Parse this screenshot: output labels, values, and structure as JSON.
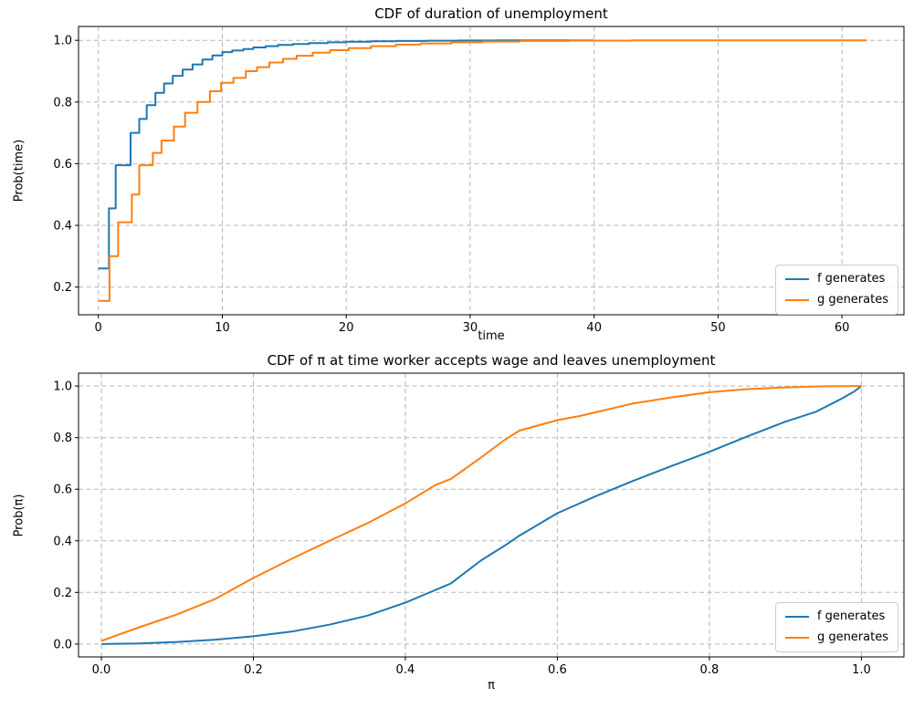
{
  "figure": {
    "background": "#ffffff",
    "grid_color": "#b5b5b5",
    "spine_color": "#000000",
    "legend_border_color": "#cccccc"
  },
  "chart_data": [
    {
      "type": "line",
      "subtype": "step-cdf",
      "title": "CDF of duration of unemployment",
      "xlabel": "time",
      "ylabel": "Prob(time)",
      "xlim": [
        -1.6,
        65.0
      ],
      "ylim": [
        0.11,
        1.045
      ],
      "grid": "dashed",
      "legend_position": "lower right",
      "xticks": [
        {
          "v": 0,
          "label": "0"
        },
        {
          "v": 10,
          "label": "10"
        },
        {
          "v": 20,
          "label": "20"
        },
        {
          "v": 30,
          "label": "30"
        },
        {
          "v": 40,
          "label": "40"
        },
        {
          "v": 50,
          "label": "50"
        },
        {
          "v": 60,
          "label": "60"
        }
      ],
      "yticks": [
        {
          "v": 0.2,
          "label": "0.2"
        },
        {
          "v": 0.4,
          "label": "0.4"
        },
        {
          "v": 0.6,
          "label": "0.6"
        },
        {
          "v": 0.8,
          "label": "0.8"
        },
        {
          "v": 1.0,
          "label": "1.0"
        }
      ],
      "series": [
        {
          "name": "f generates",
          "color": "#1f77b4",
          "style": "step",
          "points": [
            [
              0,
              0.26
            ],
            [
              0.85,
              0.455
            ],
            [
              1.4,
              0.595
            ],
            [
              2.6,
              0.7
            ],
            [
              3.3,
              0.745
            ],
            [
              3.9,
              0.79
            ],
            [
              4.6,
              0.83
            ],
            [
              5.3,
              0.86
            ],
            [
              6.0,
              0.885
            ],
            [
              6.8,
              0.905
            ],
            [
              7.6,
              0.922
            ],
            [
              8.4,
              0.938
            ],
            [
              9.2,
              0.951
            ],
            [
              10.0,
              0.962
            ],
            [
              10.8,
              0.967
            ],
            [
              11.7,
              0.972
            ],
            [
              12.5,
              0.977
            ],
            [
              13.5,
              0.981
            ],
            [
              14.5,
              0.985
            ],
            [
              15.7,
              0.988
            ],
            [
              17.0,
              0.991
            ],
            [
              18.5,
              0.9935
            ],
            [
              20.0,
              0.9955
            ],
            [
              22.0,
              0.997
            ],
            [
              24.0,
              0.998
            ],
            [
              26.5,
              0.9987
            ],
            [
              29.0,
              0.9993
            ],
            [
              32.0,
              0.9997
            ],
            [
              35.0,
              1.0
            ],
            [
              40.0,
              1.0
            ]
          ]
        },
        {
          "name": "g generates",
          "color": "#ff7f0e",
          "style": "step",
          "points": [
            [
              0,
              0.155
            ],
            [
              0.9,
              0.3
            ],
            [
              1.6,
              0.41
            ],
            [
              2.7,
              0.5
            ],
            [
              3.3,
              0.595
            ],
            [
              4.4,
              0.635
            ],
            [
              5.1,
              0.675
            ],
            [
              6.1,
              0.72
            ],
            [
              7.0,
              0.765
            ],
            [
              8.0,
              0.8
            ],
            [
              9.0,
              0.835
            ],
            [
              9.9,
              0.862
            ],
            [
              10.9,
              0.878
            ],
            [
              11.9,
              0.9
            ],
            [
              12.8,
              0.913
            ],
            [
              13.8,
              0.928
            ],
            [
              14.9,
              0.94
            ],
            [
              16.0,
              0.95
            ],
            [
              17.3,
              0.96
            ],
            [
              18.7,
              0.968
            ],
            [
              20.2,
              0.975
            ],
            [
              22.0,
              0.981
            ],
            [
              24.0,
              0.986
            ],
            [
              26.0,
              0.99
            ],
            [
              28.5,
              0.9935
            ],
            [
              31.0,
              0.996
            ],
            [
              34.0,
              0.998
            ],
            [
              38.0,
              0.999
            ],
            [
              43.0,
              1.0
            ],
            [
              62.0,
              1.0
            ]
          ]
        }
      ]
    },
    {
      "type": "line",
      "subtype": "smooth-cdf",
      "title": "CDF of π at time worker accepts wage and leaves unemployment",
      "xlabel": "π",
      "ylabel": "Prob(π)",
      "xlim": [
        -0.03,
        1.056
      ],
      "ylim": [
        -0.05,
        1.05
      ],
      "grid": "dashed",
      "legend_position": "lower right",
      "xticks": [
        {
          "v": 0.0,
          "label": "0.0"
        },
        {
          "v": 0.2,
          "label": "0.2"
        },
        {
          "v": 0.4,
          "label": "0.4"
        },
        {
          "v": 0.6,
          "label": "0.6"
        },
        {
          "v": 0.8,
          "label": "0.8"
        },
        {
          "v": 1.0,
          "label": "1.0"
        }
      ],
      "yticks": [
        {
          "v": 0.0,
          "label": "0.0"
        },
        {
          "v": 0.2,
          "label": "0.2"
        },
        {
          "v": 0.4,
          "label": "0.4"
        },
        {
          "v": 0.6,
          "label": "0.6"
        },
        {
          "v": 0.8,
          "label": "0.8"
        },
        {
          "v": 1.0,
          "label": "1.0"
        }
      ],
      "series": [
        {
          "name": "f generates",
          "color": "#1f77b4",
          "style": "line",
          "points": [
            [
              0,
              0.0
            ],
            [
              0.05,
              0.002
            ],
            [
              0.1,
              0.008
            ],
            [
              0.15,
              0.017
            ],
            [
              0.2,
              0.03
            ],
            [
              0.25,
              0.048
            ],
            [
              0.3,
              0.075
            ],
            [
              0.35,
              0.11
            ],
            [
              0.4,
              0.16
            ],
            [
              0.44,
              0.21
            ],
            [
              0.46,
              0.235
            ],
            [
              0.5,
              0.325
            ],
            [
              0.53,
              0.38
            ],
            [
              0.55,
              0.42
            ],
            [
              0.6,
              0.507
            ],
            [
              0.65,
              0.572
            ],
            [
              0.7,
              0.633
            ],
            [
              0.75,
              0.69
            ],
            [
              0.8,
              0.745
            ],
            [
              0.85,
              0.805
            ],
            [
              0.9,
              0.862
            ],
            [
              0.94,
              0.9
            ],
            [
              0.97,
              0.945
            ],
            [
              0.99,
              0.978
            ],
            [
              1.0,
              1.0
            ]
          ]
        },
        {
          "name": "g generates",
          "color": "#ff7f0e",
          "style": "line",
          "points": [
            [
              0,
              0.012
            ],
            [
              0.05,
              0.065
            ],
            [
              0.1,
              0.115
            ],
            [
              0.15,
              0.175
            ],
            [
              0.2,
              0.256
            ],
            [
              0.25,
              0.33
            ],
            [
              0.3,
              0.4
            ],
            [
              0.35,
              0.468
            ],
            [
              0.4,
              0.545
            ],
            [
              0.44,
              0.617
            ],
            [
              0.46,
              0.64
            ],
            [
              0.5,
              0.724
            ],
            [
              0.53,
              0.79
            ],
            [
              0.55,
              0.827
            ],
            [
              0.6,
              0.868
            ],
            [
              0.63,
              0.884
            ],
            [
              0.65,
              0.898
            ],
            [
              0.7,
              0.933
            ],
            [
              0.75,
              0.956
            ],
            [
              0.8,
              0.976
            ],
            [
              0.85,
              0.988
            ],
            [
              0.9,
              0.995
            ],
            [
              0.95,
              0.999
            ],
            [
              1.0,
              1.0
            ]
          ]
        }
      ]
    }
  ]
}
